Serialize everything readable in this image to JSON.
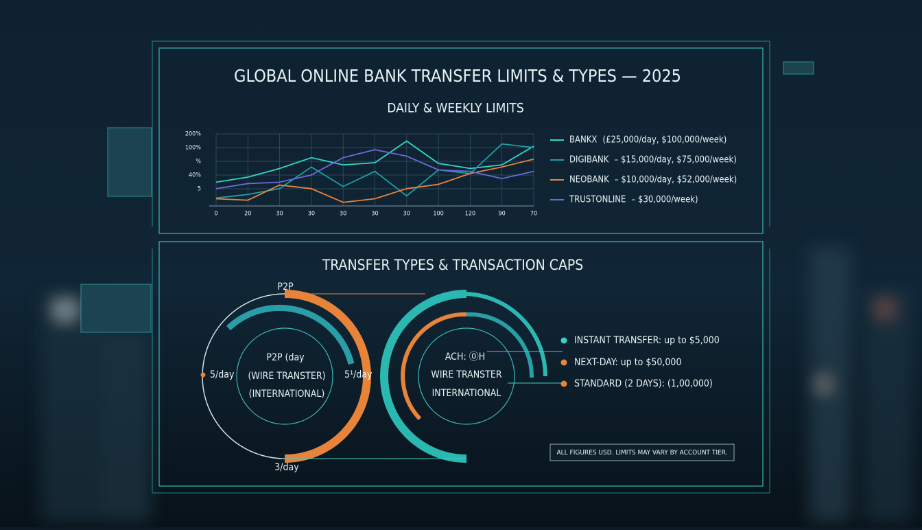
{
  "header": {
    "title": "GLOBAL ONLINE BANK TRANSFER LIMITS & TYPES — 2025",
    "subtitle": "DAILY & WEEKLY LIMITS"
  },
  "chart_data": {
    "type": "line",
    "categories": [
      "0",
      "20",
      "30",
      "30",
      "30",
      "30",
      "30",
      "100",
      "120",
      "90",
      "70"
    ],
    "y_axis_labels": [
      "200%",
      "100%",
      "%",
      "40%",
      "5"
    ],
    "ylim": [
      0,
      100
    ],
    "series": [
      {
        "name": "BANKX",
        "color": "#2fd8c8",
        "values": [
          33,
          40,
          52,
          67,
          57,
          60,
          90,
          59,
          52,
          57,
          83
        ]
      },
      {
        "name": "DIGIBANK",
        "color": "#1f9ea8",
        "values": [
          11,
          16,
          24,
          54,
          27,
          48,
          14,
          50,
          45,
          86,
          81
        ]
      },
      {
        "name": "NEOBANK",
        "color": "#e8843a",
        "values": [
          10,
          8,
          29,
          24,
          5,
          10,
          24,
          30,
          45,
          54,
          65
        ]
      },
      {
        "name": "TRUSTONLINE",
        "color": "#6a6ad8",
        "values": [
          24,
          31,
          33,
          43,
          67,
          78,
          69,
          50,
          48,
          38,
          48
        ]
      }
    ],
    "legend_details": [
      "(£25,000/day, $100,000/week)",
      "–  $15,000/day, $75,000/week)",
      "–  $10,000/day, $52,000/week)",
      "–  $30,000/week)"
    ]
  },
  "transfers": {
    "title": "TRANSFER TYPES & TRANSACTION CAPS",
    "left_ring": {
      "top": "P2P",
      "left": "5/day",
      "right": "5¹/day",
      "bottom": "3/day",
      "center": [
        "P2P (day",
        "(WIRE TRANSTER)",
        "(INTERNATIONAL)"
      ]
    },
    "right_ring": {
      "center": [
        "ACH: ⓪H",
        "WIRE TRANSTER",
        "INTERNATIONAL"
      ]
    },
    "legend": [
      "INSTANT TRANSFER: up to $5,000",
      "NEXT-DAY: up to $50,000",
      "STANDARD (2 DAYS): (1,00,000)"
    ],
    "footnote": "ALL FIGURES USD. LIMITS MAY VARY BY ACCOUNT TIER."
  }
}
